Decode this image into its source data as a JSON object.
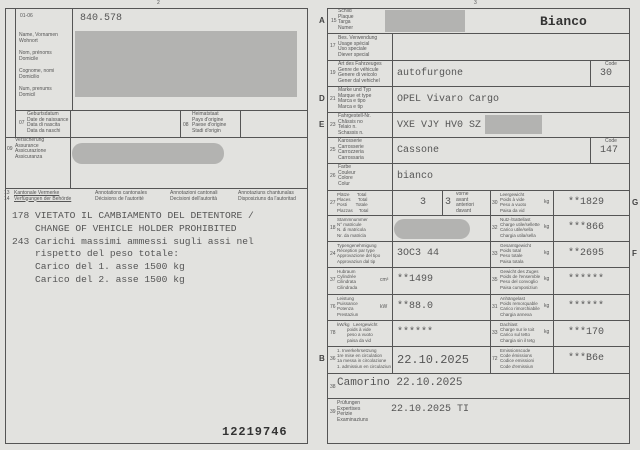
{
  "left_page": {
    "page_number": "2",
    "field_01_06_label": "01-06",
    "holder_number": "840.578",
    "holder_labels": [
      "Name, Vornamen\nWohnort",
      "Nom, prénoms\nDomicile",
      "Cognome, nomi\nDomicilio",
      "Num, prenums\nDomicil"
    ],
    "field_07_num": "07",
    "field_07_label": "Geburtsdatum\nDate de naissance\nData di nascita\nData da naschi",
    "field_08_num": "08",
    "field_08_label": "Heimatstaat\nPays d'origine\nPaese d'origine\nStadi d'origin",
    "field_09_num": "09",
    "field_09_label": "Versicherung\nAssurance\nAssicurazione\nAssicuranza",
    "annotations_num": "13\n14",
    "annotations_headers": [
      "Kantonale Vermerke\nVerfügungen der Behörde",
      "Annotations cantonales\nDécisions de l'autorité",
      "Annotazioni cantonali\nDecisioni dell'autorità",
      "Annotaziuns chantunalas\nDisposiziuns da l'autoritad"
    ],
    "annotations_text": "178 VIETATO IL CAMBIAMENTO DEL DETENTORE /\n    CHANGE OF VEHICLE HOLDER PROHIBITED\n243 Carichi massimi ammessi sugli assi nel\n    rispetto del peso totale:\n    Carico del 1. asse 1500 kg\n    Carico del 2. asse 1500 kg",
    "document_number": "12219746"
  },
  "right_page": {
    "page_number": "3",
    "plate_label": "Schild\nPlaque\nTarga\nNumer",
    "plate_num": "15",
    "plate_color": "Bianco",
    "use_label": "Bes. Verwendung\nUsage spécial\nUso speciale\nDiever special",
    "use_num": "17",
    "rows": [
      {
        "letter": "",
        "num": "19",
        "label": "Art des Fahrzeuges\nGenre de véhicule\nGenere di veicolo\nGener dal vehichel",
        "value": "autofurgone",
        "code_label": "Code",
        "code": "30"
      },
      {
        "letter": "D",
        "num": "21",
        "label": "Marke und Typ\nMarque et type\nMarca e tipo\nMarca e tip",
        "value": "OPEL Vivaro Cargo"
      },
      {
        "letter": "E",
        "num": "23",
        "label": "Fahrgestell-Nr.\nChâssis no\nTelaio n.\nSchassis n.",
        "value": "VXE VJY HV0 SZ"
      },
      {
        "letter": "",
        "num": "25",
        "label": "Karosserie\nCarrosserie\nCarrozzeria\nCarrossaria",
        "value": "Cassone",
        "code_label": "Code",
        "code": "147"
      },
      {
        "letter": "",
        "num": "26",
        "label": "Farbe\nCouleur\nColore\nColur",
        "value": "bianco"
      }
    ],
    "grid": [
      {
        "l_num": "27",
        "l_label": "Plätze      Total\nPlaces      Total\nPosti       Totale\nPlazzas     Total",
        "l_value": "3",
        "l_extra": "3",
        "l_extra_label": "vorne\navant\nanteriori\ndavant",
        "letter": "G",
        "r_num": "30",
        "r_label": "Leergewicht\nPoids à vide\nPeso a vuoto\nPaisa da vid",
        "r_unit": "kg",
        "r_value": "**1829"
      },
      {
        "l_num": "18",
        "l_label": "Stammnummer\nN° matricule\nN. di matricola\nNr. da matricla",
        "l_value": "",
        "letter": "",
        "r_num": "32",
        "r_label": "Nutz-/Sattellast\nCharge utile/sellette\nCarico utile/sella\nChargia utila/sella",
        "r_unit": "kg",
        "r_value": "***866"
      },
      {
        "l_num": "24",
        "l_label": "Typengenehmigung\nRéception par type\nApprovazione del tipo\nApprovaziun dal tip",
        "l_value": "3OC3 44",
        "letter": "F",
        "r_num": "33",
        "r_label": "Gesamtgewicht\nPoids total\nPeso totale\nPaisa totala",
        "r_unit": "kg",
        "r_value": "**2695"
      },
      {
        "l_num": "37",
        "l_label": "Hubraum\nCylindrée\nCilindrata\nCilindrada",
        "l_unit": "cm³",
        "l_value": "**1499",
        "letter": "",
        "r_num": "35",
        "r_label": "Gewicht des Zuges\nPoids de l'ensemble\nPeso del convoglio\nPaisa cumposiziun",
        "r_unit": "kg",
        "r_value": "******"
      },
      {
        "l_num": "76",
        "l_label": "Leistung\nPuissance\nPotenza\nPrestaziun",
        "l_unit": "kW",
        "l_value": "**88.0",
        "letter": "",
        "r_num": "31",
        "r_label": "Anhängelast\nPoids remorquable\nCarico rimorchiabile\nChargia annexa",
        "r_unit": "kg",
        "r_value": "******"
      },
      {
        "l_num": "78",
        "l_label": "kW/kg   Leergewicht\n        poids à vide\n        peso a vuoto\n        paisa da vid",
        "l_value": "******",
        "letter": "",
        "r_num": "33",
        "r_label": "Dachlast\nCharge sur le toit\nCarico sul tetto\nChargia sin il tetg",
        "r_unit": "kg",
        "r_value": "***170"
      },
      {
        "l_num": "36",
        "l_label": "1. Inverkehrsetzung\n1re mise en circulation\n1a messa in circolazione\n1. admissiun en circulaziun",
        "l_value": "22.10.2025",
        "letter": "B",
        "r_num": "72",
        "r_label": "Emissionscode\nCode émissions\nCodice emissioni\nCode d'emissiun",
        "r_value": "***B6e"
      }
    ],
    "issue_num": "38",
    "issue_place_date": "Camorino 22.10.2025",
    "exam_num": "39",
    "exam_label": "Prüfungen\nExpertises\nPerizie\nExaminaziuns",
    "exam_value": "22.10.2025 TI",
    "letter_a": "A"
  },
  "colors": {
    "paper": "#e2e2df",
    "ink": "#555555",
    "redaction": "#b3b3b1"
  }
}
